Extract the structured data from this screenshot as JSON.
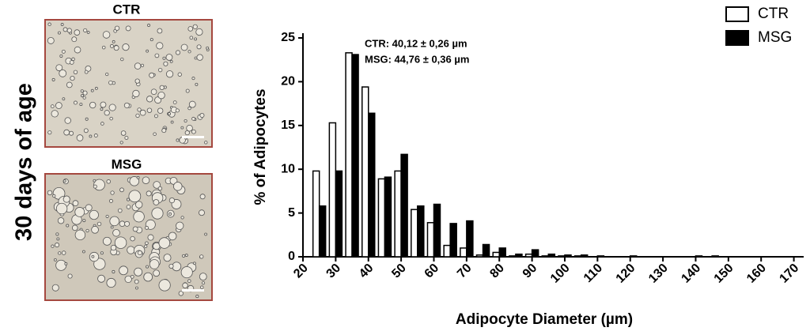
{
  "side_label": "30 days of age",
  "image_panels": [
    {
      "title": "CTR"
    },
    {
      "title": "MSG"
    }
  ],
  "chart_data": {
    "type": "bar",
    "ylabel": "% of Adipocytes",
    "xlabel": "Adipocyte Diameter (µm)",
    "annotations": [
      "CTR: 40,12 ± 0,26 µm",
      "MSG: 44,76 ± 0,36 µm"
    ],
    "x": [
      25,
      30,
      35,
      40,
      45,
      50,
      55,
      60,
      65,
      70,
      75,
      80,
      85,
      90,
      95,
      100,
      105,
      110,
      115,
      120,
      125,
      130,
      135,
      140,
      145,
      150,
      155,
      160,
      165,
      170
    ],
    "series": [
      {
        "name": "CTR",
        "color": "#ffffff",
        "values": [
          9.8,
          15.3,
          23.3,
          19.4,
          8.9,
          9.8,
          5.4,
          3.9,
          1.3,
          1.0,
          0.2,
          0.5,
          0.1,
          0.3,
          0.1,
          0.1,
          0.1,
          0,
          0,
          0,
          0,
          0,
          0,
          0,
          0,
          0,
          0,
          0,
          0,
          0
        ]
      },
      {
        "name": "MSG",
        "color": "#000000",
        "values": [
          5.8,
          9.8,
          23.1,
          16.4,
          9.1,
          11.7,
          5.8,
          6.0,
          3.8,
          4.1,
          1.4,
          1.0,
          0.3,
          0.8,
          0.3,
          0.2,
          0.2,
          0.1,
          0,
          0.1,
          0,
          0,
          0,
          0.1,
          0.1,
          0,
          0,
          0,
          0,
          0
        ]
      }
    ],
    "xlim": [
      20,
      173
    ],
    "xticks": [
      20,
      30,
      40,
      50,
      60,
      70,
      80,
      90,
      100,
      110,
      120,
      130,
      140,
      150,
      160,
      170
    ],
    "ylim": [
      0,
      25
    ],
    "yticks": [
      0,
      5,
      10,
      15,
      20,
      25
    ],
    "legend": "top-right"
  }
}
